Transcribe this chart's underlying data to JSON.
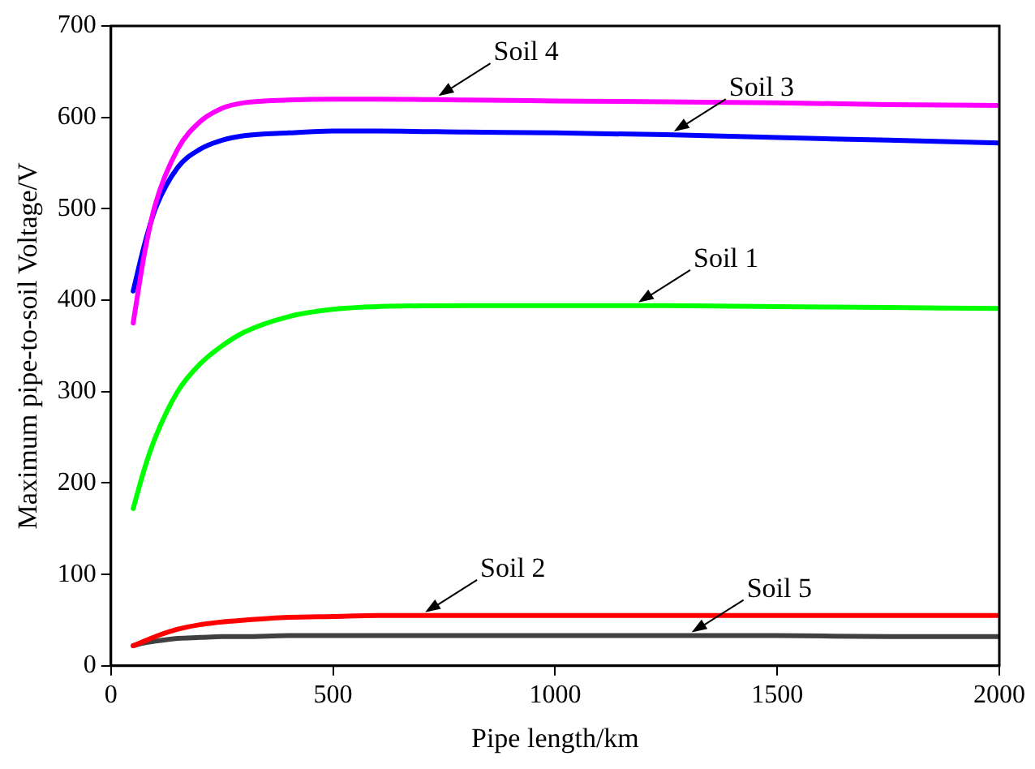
{
  "chart_data": {
    "type": "line",
    "xlabel": "Pipe length/km",
    "ylabel": "Maximum pipe-to-soil Voltage/V",
    "x": [
      50,
      75,
      100,
      150,
      200,
      250,
      300,
      400,
      500,
      600,
      800,
      1000,
      1250,
      1500,
      1750,
      2000
    ],
    "series": [
      {
        "color": "#ff00ff",
        "values": [
          375,
          450,
          505,
          565,
          595,
          610,
          616,
          619,
          620,
          620,
          619,
          618,
          617,
          616,
          614,
          613
        ]
      },
      {
        "color": "#0000ff",
        "values": [
          410,
          460,
          500,
          545,
          565,
          575,
          580,
          583,
          585,
          585,
          584,
          583,
          581,
          578,
          575,
          572
        ]
      },
      {
        "color": "#00ff00",
        "values": [
          172,
          215,
          250,
          300,
          330,
          350,
          365,
          382,
          390,
          393,
          394,
          394,
          394,
          393,
          392,
          391
        ]
      },
      {
        "color": "#ff0000",
        "values": [
          22,
          27,
          32,
          40,
          45,
          48,
          50,
          53,
          54,
          55,
          55,
          55,
          55,
          55,
          55,
          55
        ]
      },
      {
        "color": "#404040",
        "values": [
          22,
          25,
          27,
          30,
          31,
          32,
          32,
          33,
          33,
          33,
          33,
          33,
          33,
          33,
          32,
          32
        ]
      }
    ],
    "xlim": [
      0,
      2000
    ],
    "xticks": [
      0,
      500,
      1000,
      1500,
      2000
    ],
    "ylim": [
      0,
      700
    ],
    "yticks": [
      0,
      100,
      200,
      300,
      400,
      500,
      600,
      700
    ],
    "grid": false,
    "legend": false,
    "marker": "none",
    "line_style": "solid",
    "annotations": [
      {
        "text": "Soil 4",
        "x": 730,
        "y": 620
      },
      {
        "text": "Soil 3",
        "x": 1260,
        "y": 581
      },
      {
        "text": "Soil 1",
        "x": 1180,
        "y": 394
      },
      {
        "text": "Soil 2",
        "x": 700,
        "y": 55
      },
      {
        "text": "Soil 5",
        "x": 1300,
        "y": 33
      }
    ]
  }
}
